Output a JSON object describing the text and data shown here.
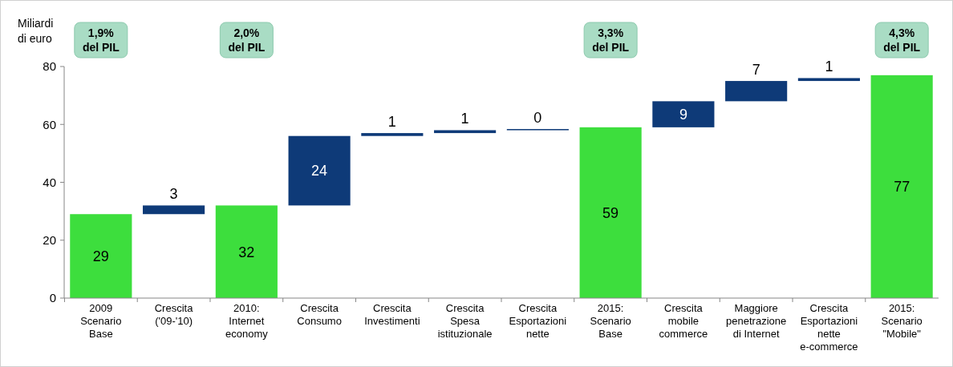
{
  "chart_data": {
    "type": "bar",
    "ylabel": "Miliardi di euro",
    "categories": [
      "2009 Scenario Base",
      "Crescita ('09-'10)",
      "2010: Internet economy",
      "Crescita Consumo",
      "Crescita Investimenti",
      "Crescita Spesa istituzionale",
      "Crescita Esportazioni nette",
      "2015: Scenario Base",
      "Crescita mobile commerce",
      "Maggiore penetrazione di Internet",
      "Crescita Esportazioni nette e-commerce",
      "2015: Scenario \"Mobile\""
    ],
    "values": [
      29,
      3,
      32,
      24,
      1,
      1,
      0.4,
      59,
      9,
      7,
      1,
      77
    ],
    "value_labels": [
      "29",
      "3",
      "32",
      "24",
      "1",
      "1",
      "0",
      "59",
      "9",
      "7",
      "1",
      "77"
    ],
    "base": [
      0,
      29,
      0,
      32,
      56,
      57,
      58,
      0,
      59,
      68,
      75,
      0
    ],
    "colors": [
      "#3dde3d",
      "#0e3a78",
      "#3dde3d",
      "#0e3a78",
      "#0e3a78",
      "#0e3a78",
      "#0e3a78",
      "#3dde3d",
      "#0e3a78",
      "#0e3a78",
      "#0e3a78",
      "#3dde3d"
    ],
    "ylim": [
      0,
      80
    ],
    "yticks": [
      0,
      20,
      40,
      60,
      80
    ],
    "grid": false,
    "annotations": [
      "1,9% del PIL",
      "2,0% del PIL",
      "3,3% del PIL",
      "4,3% del PIL"
    ]
  }
}
